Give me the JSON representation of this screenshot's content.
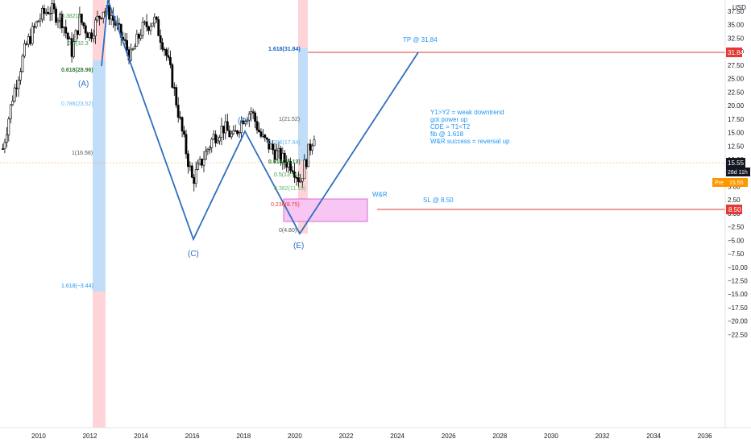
{
  "axis": {
    "currency": "USD",
    "price_ticks": [
      "37.50",
      "35.00",
      "32.50",
      "30.00",
      "27.50",
      "25.00",
      "22.50",
      "20.00",
      "17.50",
      "15.00",
      "12.50",
      "10.00",
      "7.50",
      "5.00",
      "2.50",
      "0.00",
      "−2.50",
      "−5.00",
      "−7.50",
      "−10.00",
      "−12.50",
      "−15.00",
      "−17.50",
      "−20.00",
      "−22.50"
    ],
    "year_ticks": [
      "2010",
      "2012",
      "2014",
      "2016",
      "2018",
      "2020",
      "2022",
      "2024",
      "2026",
      "2028",
      "2030",
      "2032",
      "2034",
      "2036"
    ]
  },
  "badges": {
    "tp_price": "31.84",
    "last_price": "15.55",
    "countdown": "28d 11h",
    "pre_tag": "Pre",
    "pre_price": "15.55",
    "sl_price": "8.50"
  },
  "annotations": {
    "tp": "TP @ 31.84",
    "sl": "SL @ 8.50",
    "wr": "W&R",
    "note_lines": [
      "Y1>Y2 = weak downtrend",
      "got power up",
      "CDE = T1<T2",
      "fib @ 1.618",
      "W&R success = reversal up"
    ]
  },
  "wave_labels": [
    "(A)",
    "(C)",
    "(D)",
    "(E)"
  ],
  "fib_left": [
    "0.382(3",
    "0.5(32.3",
    "0.618(28.96)",
    "0.786(23.52)",
    "1(16.58)",
    "1.618(−3.44)"
  ],
  "fib_right": [
    "1.618(31.84)",
    "1(21.52)",
    "0.786(17.94)",
    "0.618(15.13)",
    "0.5(13.16)",
    "0.382(11.19)",
    "0.236(8.75)",
    "0(4.80)"
  ],
  "colors": {
    "up": "#ffffff",
    "down": "#000000",
    "pattern_line": "#2e6fbf",
    "tp_sl_line": "#e53935",
    "fib_shade": "#bbdefb",
    "red_band": "#ffcdd2",
    "wr_box": "#f8c6f2",
    "pre_badge": "#ff9800",
    "note_blue": "#2196f3"
  },
  "chart_data": {
    "type": "candlestick",
    "symbol_currency": "USD",
    "y_axis": {
      "min": -22.5,
      "max": 37.5,
      "step": 2.5
    },
    "x_axis": {
      "ticks": [
        2010,
        2012,
        2014,
        2016,
        2018,
        2020,
        2022,
        2024,
        2026,
        2028,
        2030,
        2032,
        2034,
        2036
      ]
    },
    "price_anchor_path": [
      [
        2008.6,
        12
      ],
      [
        2009.0,
        22
      ],
      [
        2009.5,
        31
      ],
      [
        2010.0,
        36
      ],
      [
        2010.4,
        38
      ],
      [
        2010.9,
        36
      ],
      [
        2011.3,
        30
      ],
      [
        2011.6,
        36
      ],
      [
        2012.0,
        33
      ],
      [
        2012.5,
        38
      ],
      [
        2012.8,
        37
      ],
      [
        2013.2,
        33
      ],
      [
        2013.6,
        29
      ],
      [
        2014.0,
        34
      ],
      [
        2014.5,
        36
      ],
      [
        2014.9,
        31
      ],
      [
        2015.2,
        25
      ],
      [
        2015.6,
        15
      ],
      [
        2016.0,
        6
      ],
      [
        2016.4,
        10
      ],
      [
        2016.8,
        14
      ],
      [
        2017.2,
        16
      ],
      [
        2017.6,
        14
      ],
      [
        2018.0,
        18
      ],
      [
        2018.3,
        19
      ],
      [
        2018.7,
        14
      ],
      [
        2019.1,
        12
      ],
      [
        2019.5,
        10
      ],
      [
        2019.9,
        9
      ],
      [
        2020.2,
        6
      ],
      [
        2020.5,
        11
      ],
      [
        2020.8,
        15.55
      ]
    ],
    "zigzag_points": [
      {
        "label": "A",
        "x": 2011.7,
        "y": 28
      },
      {
        "label": "B",
        "x": 2012.8,
        "y": 38.5
      },
      {
        "label": "C",
        "x": 2016.0,
        "y": 4
      },
      {
        "label": "D",
        "x": 2018.0,
        "y": 20.2
      },
      {
        "label": "E",
        "x": 2020.2,
        "y": 4.8
      },
      {
        "label": "target",
        "x": 2024.8,
        "y": 31.84
      }
    ],
    "fib_levels_left": [
      {
        "ratio": 0.618,
        "price": 28.96
      },
      {
        "ratio": 0.786,
        "price": 23.52
      },
      {
        "ratio": 1,
        "price": 16.58
      },
      {
        "ratio": 1.618,
        "price": -3.44
      }
    ],
    "fib_levels_right": [
      {
        "ratio": 1.618,
        "price": 31.84
      },
      {
        "ratio": 1,
        "price": 21.52
      },
      {
        "ratio": 0.786,
        "price": 17.94
      },
      {
        "ratio": 0.618,
        "price": 15.13
      },
      {
        "ratio": 0.5,
        "price": 13.16
      },
      {
        "ratio": 0.382,
        "price": 11.19
      },
      {
        "ratio": 0.236,
        "price": 8.75
      },
      {
        "ratio": 0,
        "price": 4.8
      }
    ],
    "take_profit": 31.84,
    "stop_loss": 8.5,
    "last_price": 15.55,
    "wr_box": {
      "x0": 2019.8,
      "x1": 2022.8,
      "y0": 6.7,
      "y1": 10.0
    }
  }
}
